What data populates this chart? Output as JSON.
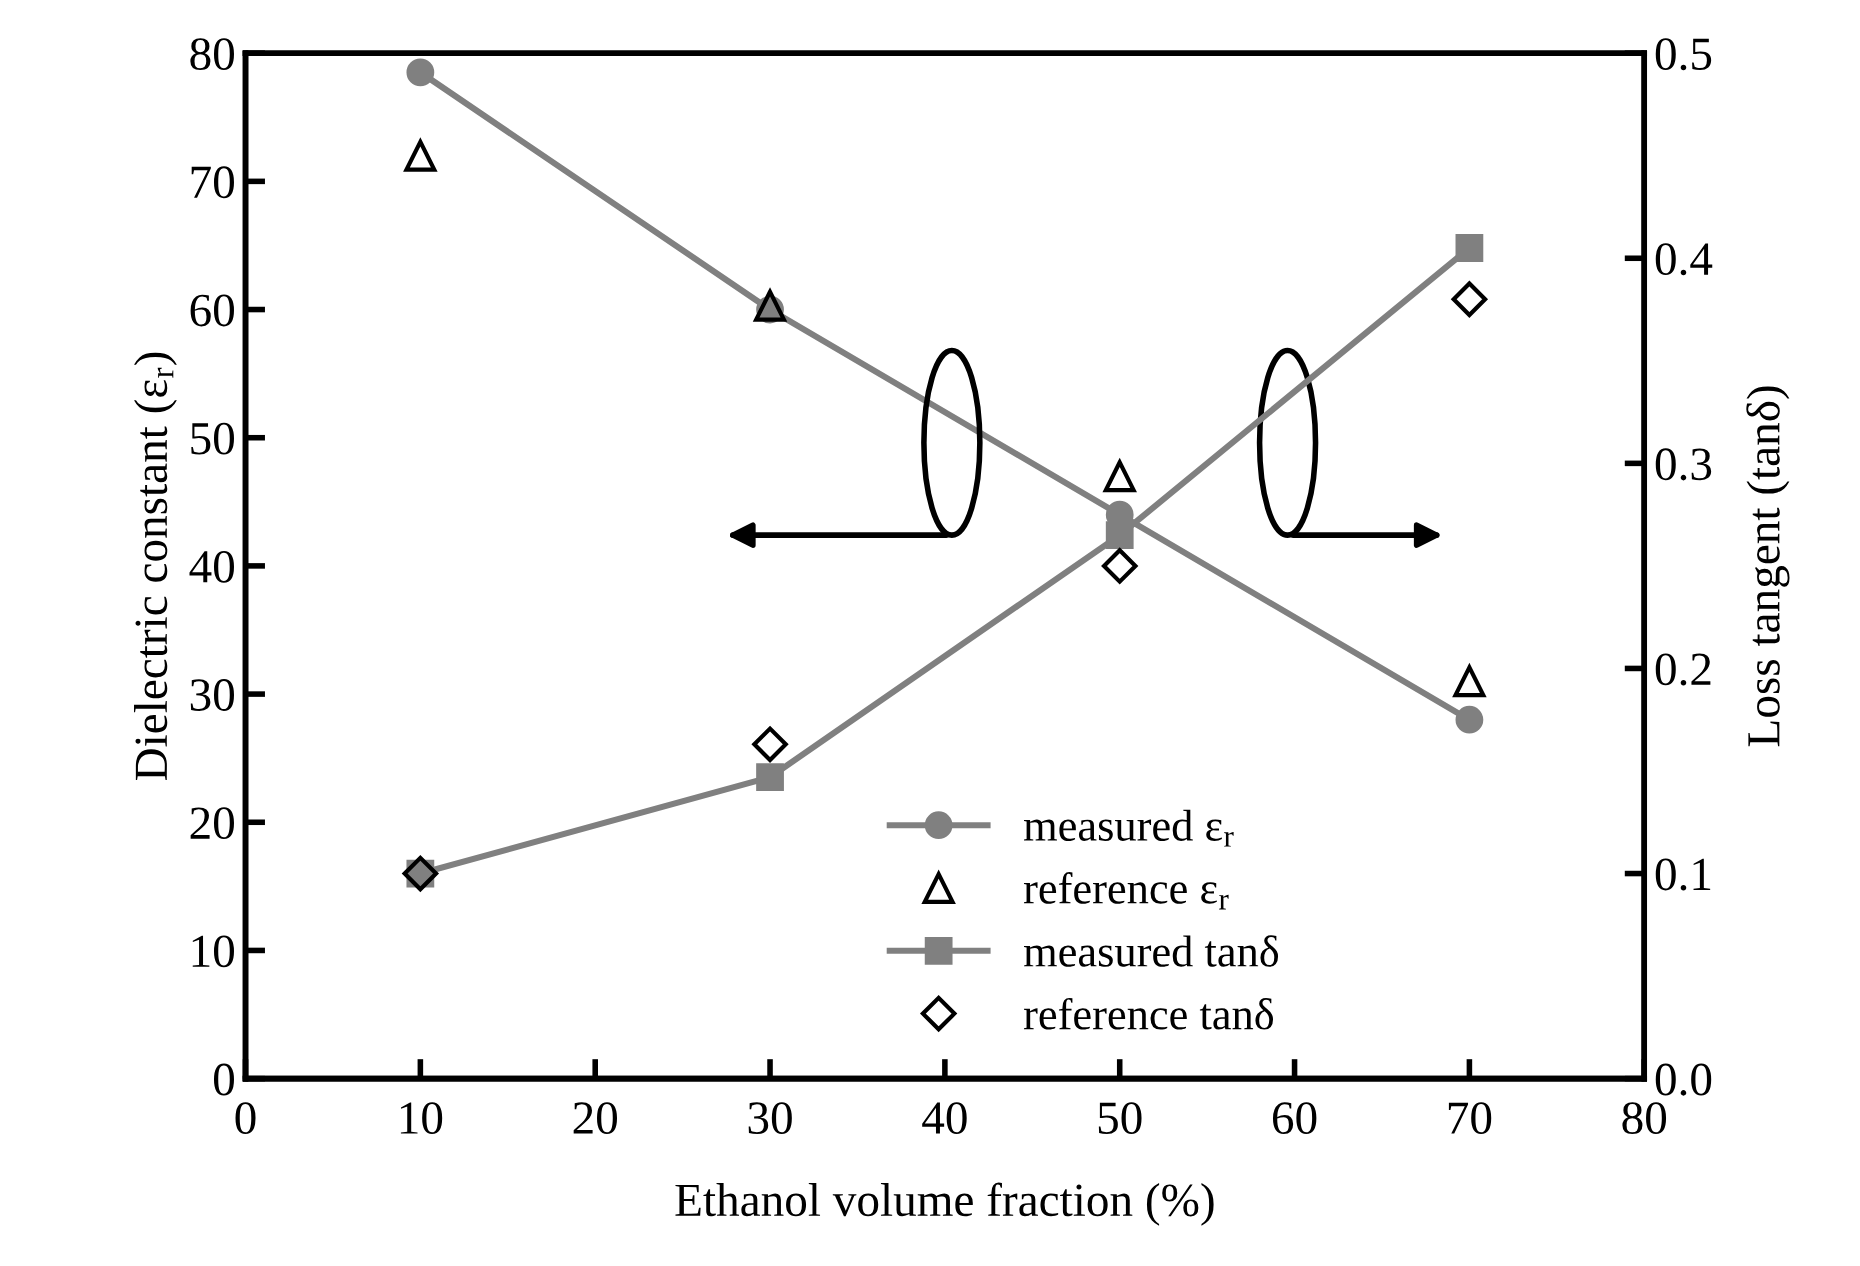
{
  "chart_data": {
    "type": "line",
    "xlabel": "Ethanol volume fraction (%)",
    "ylabel": "Dielectric constant (ε$_{r}$)",
    "y2label": "Loss tangent (tanδ)",
    "x": [
      10,
      30,
      50,
      70
    ],
    "series": [
      {
        "name": "measured ε$_{r}$",
        "color": "#808080",
        "marker": "circle",
        "values": [
          78.5,
          60,
          44,
          28
        ]
      },
      {
        "name": "reference ε$_{r}$",
        "type": "scatter",
        "color": "#000000",
        "marker": "triangle",
        "values": [
          72,
          60.3,
          47,
          31
        ]
      },
      {
        "name": "measured tanδ",
        "color": "#808080",
        "marker": "square",
        "axis": "y2",
        "values": [
          0.1,
          0.147,
          0.265,
          0.405
        ]
      },
      {
        "name": "reference tanδ",
        "type": "scatter",
        "color": "#000000",
        "marker": "diamond",
        "axis": "y2",
        "values": [
          0.1,
          0.163,
          0.25,
          0.38
        ]
      }
    ],
    "xlim": [
      0,
      80
    ],
    "xticks": [
      0,
      10,
      20,
      30,
      40,
      50,
      60,
      70,
      80
    ],
    "ylim": [
      0,
      80
    ],
    "yticks": [
      0,
      10,
      20,
      30,
      40,
      50,
      60,
      70,
      80
    ],
    "y2lim": [
      0,
      0.5
    ],
    "y2ticks": [
      {
        "value": 0,
        "label": "0.0"
      },
      0.1,
      0.2,
      0.3,
      0.4,
      0.5
    ],
    "grid": false,
    "legend": "bottom"
  }
}
